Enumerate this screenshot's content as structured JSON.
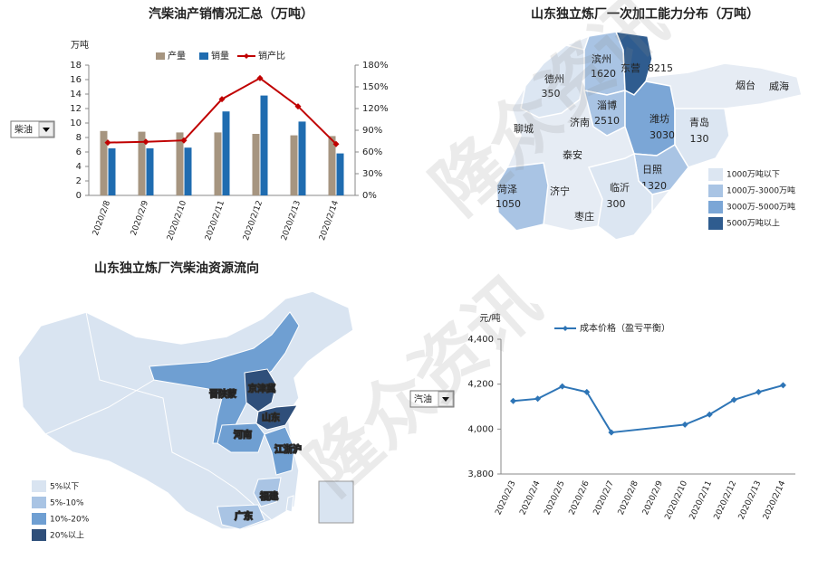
{
  "chart_data": [
    {
      "type": "bar",
      "title": "汽柴油产销情况汇总（万吨）",
      "y_label": "万吨",
      "selector": "柴油",
      "categories": [
        "2020/2/8",
        "2020/2/9",
        "2020/2/10",
        "2020/2/11",
        "2020/2/12",
        "2020/2/13",
        "2020/2/14"
      ],
      "series": [
        {
          "name": "产量",
          "color": "#a69580",
          "values": [
            8.9,
            8.8,
            8.7,
            8.7,
            8.5,
            8.3,
            8.2
          ]
        },
        {
          "name": "销量",
          "color": "#1f6cb0",
          "values": [
            6.5,
            6.5,
            6.6,
            11.6,
            13.8,
            10.2,
            5.8
          ]
        },
        {
          "name": "销产比",
          "color": "#c00000",
          "type": "line",
          "axis": "y2",
          "values": [
            73,
            74,
            76,
            133,
            162,
            123,
            71
          ]
        }
      ],
      "ylim": [
        0,
        18
      ],
      "yticks": [
        0,
        2,
        4,
        6,
        8,
        10,
        12,
        14,
        16,
        18
      ],
      "y2lim": [
        0,
        180
      ],
      "y2ticks": [
        {
          "value": 0,
          "label": "0%"
        },
        {
          "value": 30,
          "label": "30%"
        },
        {
          "value": 60,
          "label": "60%"
        },
        {
          "value": 90,
          "label": "90%"
        },
        {
          "value": 120,
          "label": "120%"
        },
        {
          "value": 150,
          "label": "150%"
        },
        {
          "value": 180,
          "label": "180%"
        }
      ]
    },
    {
      "type": "line",
      "y_label": "元/吨",
      "selector": "汽油",
      "categories": [
        "2020/2/3",
        "2020/2/4",
        "2020/2/5",
        "2020/2/6",
        "2020/2/7",
        "2020/2/8",
        "2020/2/9",
        "2020/2/10",
        "2020/2/11",
        "2020/2/12",
        "2020/2/13",
        "2020/2/14"
      ],
      "series": [
        {
          "name": "成本价格（盈亏平衡）",
          "color": "#2e75b6",
          "values": [
            4125,
            4135,
            4190,
            4165,
            3985,
            null,
            null,
            4020,
            4065,
            4130,
            4165,
            4195
          ]
        }
      ],
      "ylim": [
        3800,
        4400
      ],
      "yticks": [
        {
          "value": 3800,
          "label": "3,800"
        },
        {
          "value": 4000,
          "label": "4,000"
        },
        {
          "value": 4200,
          "label": "4,200"
        },
        {
          "value": 4400,
          "label": "4,400"
        }
      ]
    }
  ],
  "shandong_map": {
    "title": "山东独立炼厂一次加工能力分布（万吨）",
    "legend": [
      {
        "label": "1000万吨以下",
        "color": "#dce6f2"
      },
      {
        "label": "1000万-3000万吨",
        "color": "#a9c4e4"
      },
      {
        "label": "3000万-5000万吨",
        "color": "#7ba6d6"
      },
      {
        "label": "5000万吨以上",
        "color": "#2f5c8f"
      }
    ],
    "regions": [
      {
        "name": "德州",
        "value": 350,
        "color": "#dce6f2"
      },
      {
        "name": "滨州",
        "value": 1620,
        "color": "#a9c4e4"
      },
      {
        "name": "东营",
        "value": 8215,
        "color": "#2f5c8f"
      },
      {
        "name": "淄博",
        "value": 2510,
        "color": "#a9c4e4"
      },
      {
        "name": "潍坊",
        "value": 3030,
        "color": "#7ba6d6"
      },
      {
        "name": "青岛",
        "value": 130,
        "color": "#dce6f2"
      },
      {
        "name": "日照",
        "value": 1320,
        "color": "#a9c4e4"
      },
      {
        "name": "临沂",
        "value": 300,
        "color": "#dce6f2"
      },
      {
        "name": "菏泽",
        "value": 1050,
        "color": "#a9c4e4"
      },
      {
        "name": "烟台"
      },
      {
        "name": "威海"
      },
      {
        "name": "聊城"
      },
      {
        "name": "济南"
      },
      {
        "name": "泰安"
      },
      {
        "name": "济宁"
      },
      {
        "name": "枣庄"
      }
    ]
  },
  "china_map": {
    "title": "山东独立炼厂汽柴油资源流向",
    "legend": [
      {
        "label": "5%以下",
        "color": "#d9e4f1"
      },
      {
        "label": "5%-10%",
        "color": "#a9c4e4"
      },
      {
        "label": "10%-20%",
        "color": "#6f9fd2"
      },
      {
        "label": "20%以上",
        "color": "#2f4f7a"
      }
    ],
    "regions": [
      {
        "name": "晋陕蒙",
        "color": "#6f9fd2"
      },
      {
        "name": "京津冀",
        "color": "#2f4f7a"
      },
      {
        "name": "山东",
        "color": "#2f4f7a"
      },
      {
        "name": "河南",
        "color": "#6f9fd2"
      },
      {
        "name": "江浙沪",
        "color": "#6f9fd2"
      },
      {
        "name": "福建",
        "color": "#a9c4e4"
      },
      {
        "name": "广东",
        "color": "#a9c4e4"
      }
    ]
  },
  "watermark": "隆众资讯"
}
